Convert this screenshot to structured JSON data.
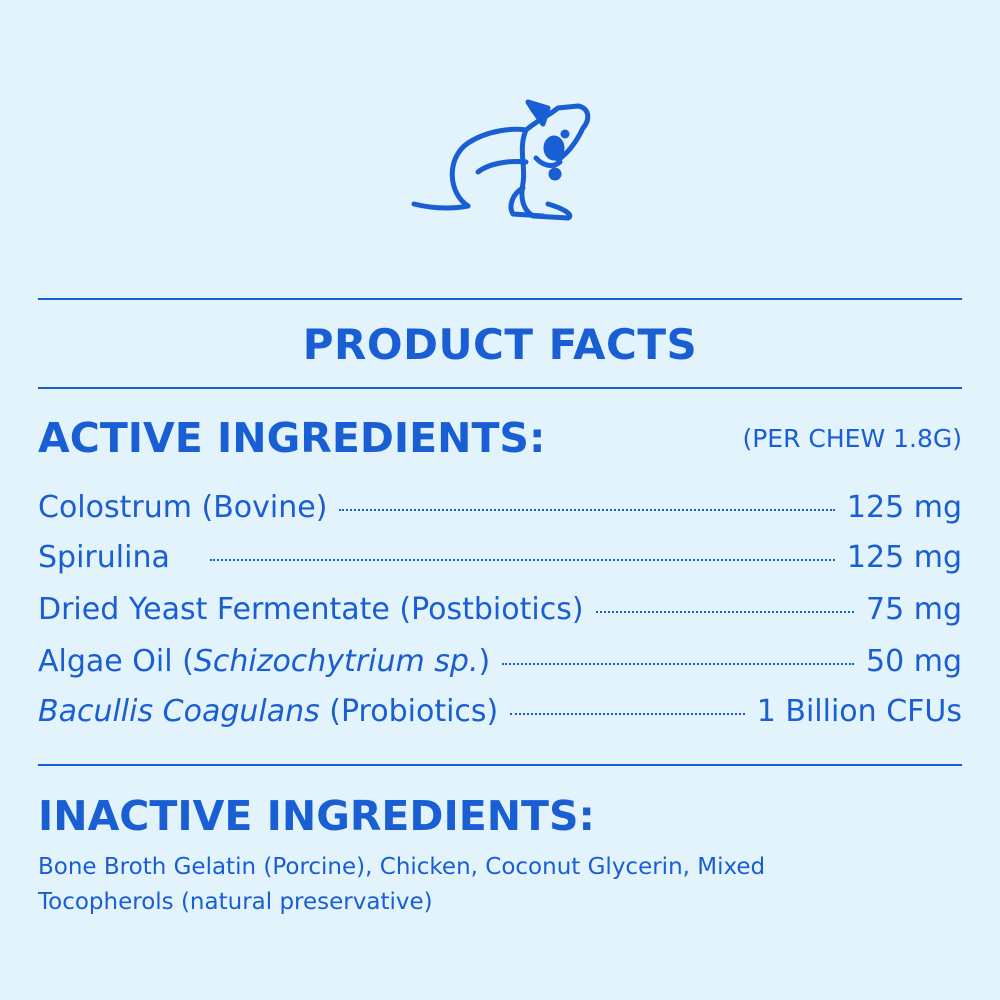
{
  "title": "PRODUCT FACTS",
  "active": {
    "heading": "ACTIVE INGREDIENTS:",
    "serving": "(PER CHEW 1.8G)",
    "items": [
      {
        "pre": "Colostrum (Bovine)",
        "italic": "",
        "post": "",
        "amount": "125 mg"
      },
      {
        "pre": "Spirulina",
        "italic": "",
        "post": "",
        "amount": "125 mg"
      },
      {
        "pre": "Dried Yeast Fermentate (Postbiotics)",
        "italic": "",
        "post": "",
        "amount": "75 mg"
      },
      {
        "pre": "Algae Oil (",
        "italic": "Schizochytrium sp.",
        "post": ")",
        "amount": "50 mg"
      },
      {
        "pre": "",
        "italic": "Bacullis Coagulans",
        "post": " (Probiotics)",
        "amount": "1 Billion CFUs"
      }
    ]
  },
  "inactive": {
    "heading": "INACTIVE INGREDIENTS:",
    "text": "Bone Broth Gelatin (Porcine), Chicken, Coconut Glycerin, Mixed Tocopherols (natural preservative)"
  },
  "colors": {
    "background": "#e2f3fb",
    "accent": "#1a5ed3"
  },
  "icons": {
    "logo": "scratching-dog-icon"
  }
}
